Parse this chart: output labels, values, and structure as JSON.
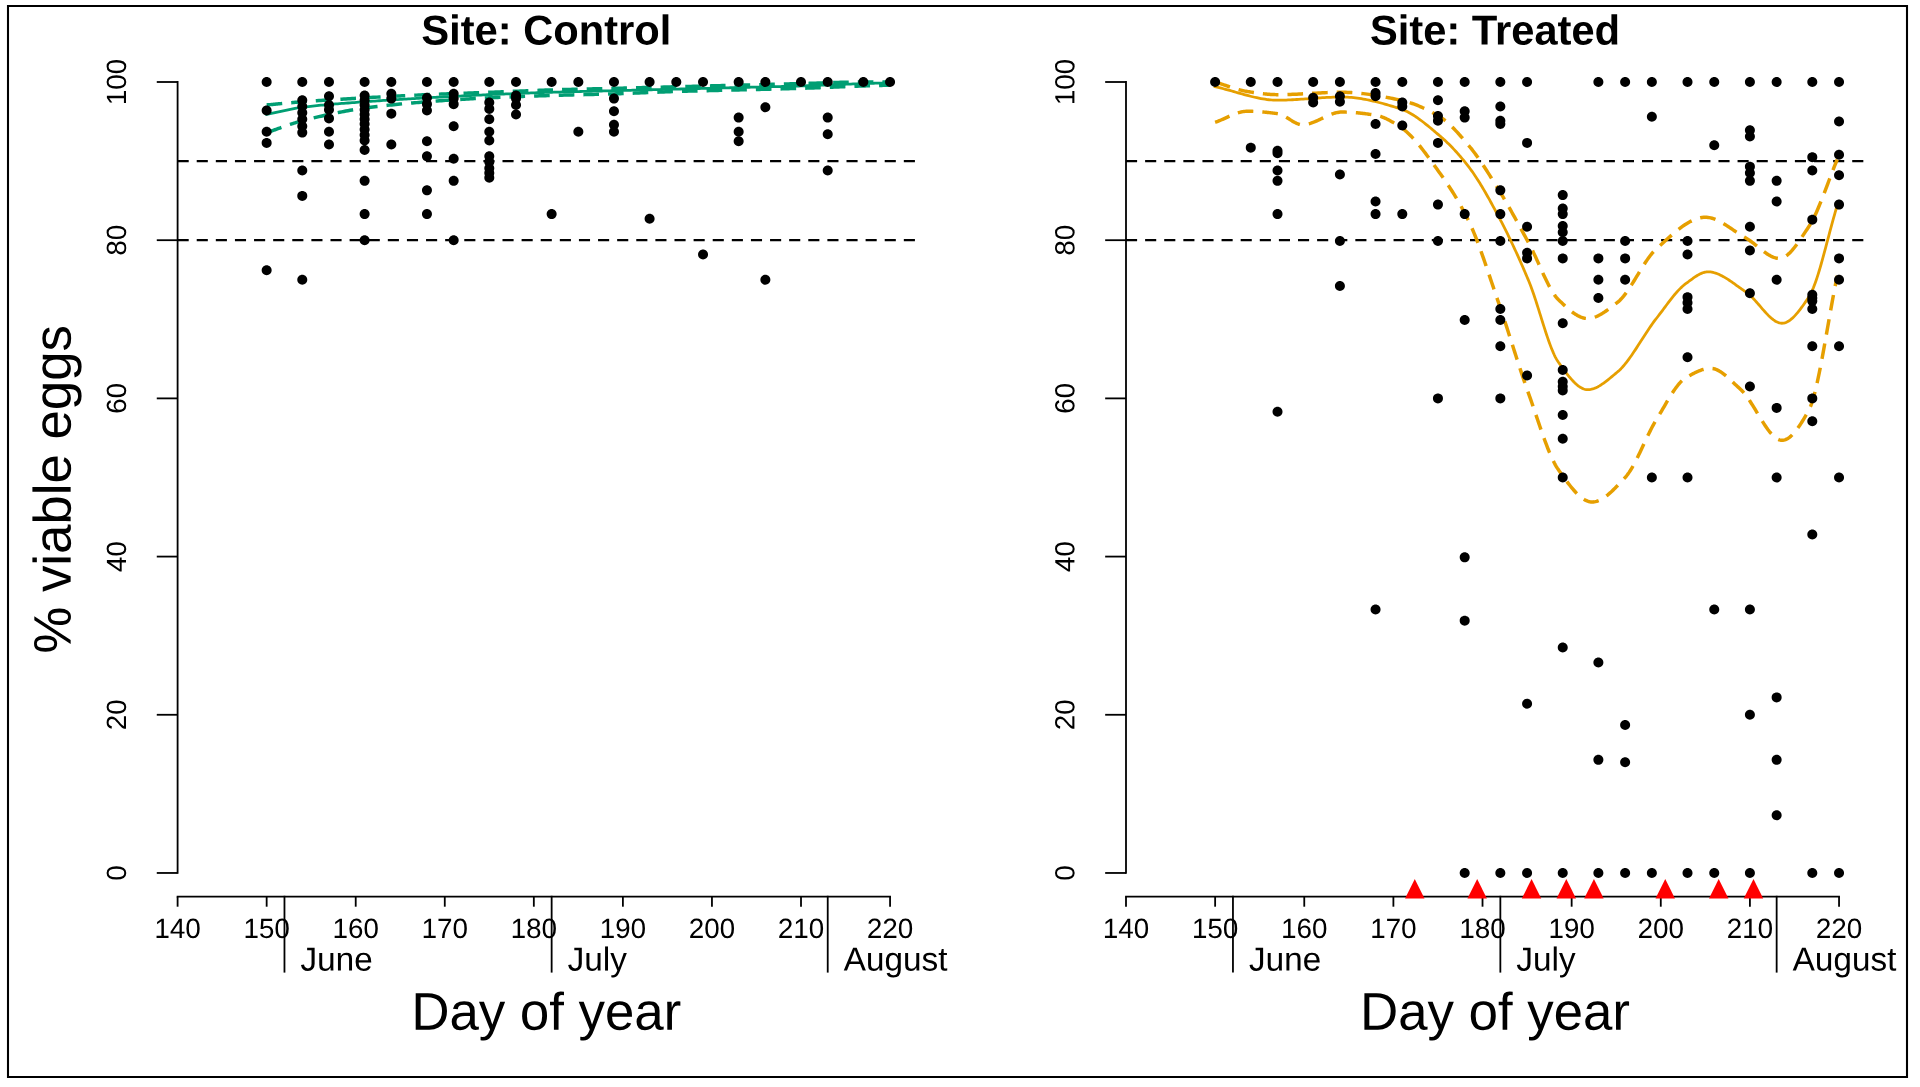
{
  "chart_data": [
    {
      "type": "scatter",
      "title": "Site: Control",
      "xlabel": "Day of year",
      "ylabel": "% viable eggs",
      "xlim": [
        140,
        222.8
      ],
      "ylim": [
        -3,
        100
      ],
      "xticks": [
        140,
        150,
        160,
        170,
        180,
        190,
        200,
        210,
        220
      ],
      "yticks": [
        0,
        20,
        40,
        60,
        80,
        100
      ],
      "ref_lines": [
        {
          "axis": "y",
          "value": 90,
          "color": "#000000",
          "line_style": "dashed"
        },
        {
          "axis": "y",
          "value": 80,
          "color": "#000000",
          "line_style": "dashed"
        },
        {
          "axis": "x",
          "value": 152,
          "label": "June",
          "color": "#000000",
          "line_style": "solid"
        },
        {
          "axis": "x",
          "value": 182,
          "label": "July",
          "color": "#000000",
          "line_style": "solid"
        },
        {
          "axis": "x",
          "value": 213,
          "label": "August",
          "color": "#000000",
          "line_style": "solid"
        }
      ],
      "series": [
        {
          "color": "#000000",
          "marker": "circle",
          "x": [
            150,
            150,
            150,
            150,
            150,
            154,
            154,
            154,
            154,
            154,
            154,
            154,
            154,
            154,
            154,
            157,
            157,
            157,
            157,
            157,
            157,
            157,
            161,
            161,
            161,
            161,
            161,
            161,
            161,
            161,
            161,
            161,
            161,
            161,
            161,
            161,
            161,
            164,
            164,
            164,
            164,
            164,
            168,
            168,
            168,
            168,
            168,
            168,
            168,
            168,
            171,
            171,
            171,
            171,
            171,
            171,
            171,
            171,
            175,
            175,
            175,
            175,
            175,
            175,
            175,
            175,
            175,
            175,
            175,
            178,
            178,
            178,
            178,
            178,
            182,
            182,
            185,
            185,
            189,
            189,
            189,
            189,
            189,
            193,
            193,
            196,
            199,
            199,
            203,
            203,
            203,
            203,
            206,
            206,
            206,
            210,
            213,
            213,
            213,
            213,
            217,
            220
          ],
          "values": [
            100,
            96.4,
            93.7,
            92.3,
            76.2,
            100,
            97.7,
            96.9,
            96.1,
            95.3,
            94.4,
            93.6,
            88.8,
            85.6,
            75.0,
            100,
            98.2,
            97.1,
            96.5,
            95.4,
            93.7,
            92.1,
            100,
            98.3,
            97.7,
            97.1,
            96.5,
            95.9,
            95.3,
            94.7,
            94.0,
            93.3,
            92.6,
            91.4,
            87.5,
            83.3,
            80.0,
            100,
            98.5,
            97.9,
            96.0,
            92.1,
            100,
            98.0,
            97.2,
            96.4,
            92.5,
            90.6,
            86.3,
            83.3,
            100,
            98.5,
            97.9,
            97.2,
            94.4,
            90.3,
            87.5,
            80.0,
            100,
            97.4,
            96.6,
            95.3,
            93.7,
            92.6,
            90.6,
            89.9,
            89.1,
            88.5,
            87.9,
            100,
            98.3,
            97.9,
            97.1,
            95.9,
            100,
            83.3,
            100,
            93.7,
            100,
            97.9,
            96.3,
            94.6,
            93.7,
            100,
            82.7,
            100,
            100,
            78.2,
            100,
            95.5,
            93.7,
            92.5,
            100,
            96.8,
            75.0,
            100,
            100,
            95.5,
            93.4,
            88.8,
            100,
            100
          ]
        },
        {
          "type": "line",
          "color": "#009e73",
          "line_style": "solid",
          "x": [
            150,
            154,
            161,
            168,
            175,
            182,
            189,
            196,
            203,
            210,
            217,
            220
          ],
          "values": [
            95.9,
            96.8,
            97.5,
            98.0,
            98.4,
            98.7,
            98.9,
            99.1,
            99.3,
            99.5,
            99.8,
            99.9
          ]
        },
        {
          "type": "line",
          "color": "#009e73",
          "line_style": "dashed",
          "x": [
            150,
            154,
            161,
            168,
            175,
            182,
            189,
            196,
            203,
            210,
            217,
            220
          ],
          "values": [
            97.1,
            97.5,
            98.0,
            98.4,
            98.7,
            99.0,
            99.2,
            99.4,
            99.6,
            99.8,
            100.0,
            100.0
          ]
        },
        {
          "type": "line",
          "color": "#009e73",
          "line_style": "dashed",
          "x": [
            150,
            154,
            161,
            168,
            175,
            182,
            189,
            196,
            203,
            210,
            217,
            220
          ],
          "values": [
            93.6,
            95.1,
            96.7,
            97.5,
            98.0,
            98.3,
            98.5,
            98.8,
            99.0,
            99.2,
            99.5,
            99.6
          ]
        }
      ]
    },
    {
      "type": "scatter",
      "title": "Site: Treated",
      "xlabel": "Day of year",
      "xlim": [
        140,
        222.8
      ],
      "ylim": [
        -3,
        100
      ],
      "xticks": [
        140,
        150,
        160,
        170,
        180,
        190,
        200,
        210,
        220
      ],
      "yticks": [
        0,
        20,
        40,
        60,
        80,
        100
      ],
      "ref_lines": [
        {
          "axis": "y",
          "value": 90,
          "color": "#000000",
          "line_style": "dashed"
        },
        {
          "axis": "y",
          "value": 80,
          "color": "#000000",
          "line_style": "dashed"
        },
        {
          "axis": "x",
          "value": 152,
          "label": "June",
          "color": "#000000",
          "line_style": "solid"
        },
        {
          "axis": "x",
          "value": 182,
          "label": "July",
          "color": "#000000",
          "line_style": "solid"
        },
        {
          "axis": "x",
          "value": 213,
          "label": "August",
          "color": "#000000",
          "line_style": "solid"
        }
      ],
      "series": [
        {
          "color": "#000000",
          "marker": "circle",
          "x": [
            150,
            154,
            154,
            157,
            157,
            157,
            157,
            157,
            157,
            157,
            161,
            161,
            161,
            164,
            164,
            164,
            164,
            164,
            164,
            168,
            168,
            168,
            168,
            168,
            168,
            168,
            168,
            171,
            171,
            171,
            171,
            171,
            175,
            175,
            175,
            175,
            175,
            175,
            175,
            175,
            178,
            178,
            178,
            178,
            178,
            178,
            178,
            178,
            182,
            182,
            182,
            182,
            182,
            182,
            182,
            182,
            182,
            182,
            182,
            182,
            185,
            185,
            185,
            185,
            185,
            185,
            185,
            185,
            189,
            189,
            189,
            189,
            189,
            189,
            189,
            189,
            189,
            189,
            189,
            189,
            189,
            189,
            189,
            189,
            189,
            193,
            193,
            193,
            193,
            193,
            193,
            193,
            196,
            196,
            196,
            196,
            196,
            196,
            196,
            199,
            199,
            199,
            199,
            203,
            203,
            203,
            203,
            203,
            203,
            203,
            203,
            203,
            206,
            206,
            206,
            206,
            210,
            210,
            210,
            210,
            210,
            210,
            210,
            210,
            210,
            210,
            210,
            210,
            210,
            213,
            213,
            213,
            213,
            213,
            213,
            213,
            213,
            213,
            217,
            217,
            217,
            217,
            217,
            217,
            217,
            217,
            217,
            217,
            217,
            217,
            217,
            220,
            220,
            220,
            220,
            220,
            220,
            220,
            220,
            220,
            220
          ],
          "values": [
            100,
            100,
            91.7,
            100,
            91.3,
            91.0,
            88.8,
            87.5,
            83.3,
            58.3,
            100,
            98.0,
            97.4,
            100,
            98.2,
            97.5,
            88.3,
            79.9,
            74.2,
            100,
            98.6,
            98.2,
            94.7,
            90.9,
            84.9,
            83.3,
            33.3,
            100,
            97.4,
            96.9,
            94.5,
            83.3,
            100,
            97.7,
            95.7,
            95.1,
            92.3,
            84.5,
            79.9,
            60.0,
            100,
            96.3,
            95.5,
            83.3,
            69.9,
            39.9,
            31.9,
            0,
            100,
            96.9,
            95.1,
            94.7,
            86.3,
            83.3,
            79.9,
            71.3,
            69.9,
            66.6,
            60.0,
            0,
            100,
            92.3,
            81.7,
            78.4,
            77.7,
            62.9,
            21.4,
            0,
            85.7,
            84.0,
            83.3,
            81.8,
            81.0,
            79.9,
            77.7,
            69.5,
            63.6,
            62.1,
            61.5,
            61.0,
            57.9,
            54.9,
            50.0,
            28.5,
            0,
            100,
            77.7,
            75.0,
            72.7,
            26.6,
            14.3,
            0,
            100,
            79.9,
            77.7,
            75.0,
            18.7,
            14.0,
            0,
            100,
            95.6,
            50.0,
            0,
            100,
            79.9,
            78.2,
            72.8,
            72.1,
            71.3,
            65.2,
            50.0,
            0,
            100,
            92.0,
            33.3,
            0,
            100,
            93.9,
            93.1,
            89.3,
            88.5,
            87.5,
            81.7,
            78.7,
            73.3,
            61.5,
            33.3,
            20.0,
            0,
            100,
            87.5,
            84.9,
            75.0,
            58.8,
            50.0,
            22.2,
            14.3,
            7.3,
            100,
            90.5,
            88.8,
            82.6,
            73.1,
            72.7,
            72.3,
            71.3,
            66.6,
            60.0,
            57.1,
            42.8,
            0,
            100,
            95.0,
            90.8,
            88.2,
            84.5,
            77.7,
            75.0,
            66.6,
            50.0,
            0
          ]
        },
        {
          "type": "line",
          "color": "#e69f00",
          "line_style": "solid",
          "x": [
            150,
            157,
            164.2,
            170.8,
            175.2,
            178.5,
            181.8,
            185.2,
            188.5,
            191.8,
            195.1,
            199.5,
            202.8,
            205.3,
            209.5,
            213.6,
            216.6,
            219.8
          ],
          "values": [
            99.4,
            97.7,
            98.1,
            96.6,
            93.2,
            89.2,
            83.0,
            74.8,
            64.6,
            61.1,
            63.3,
            70.1,
            74.5,
            76.0,
            73.5,
            69.5,
            72.8,
            84.4
          ]
        },
        {
          "type": "line",
          "color": "#e69f00",
          "line_style": "dashed",
          "x": [
            150,
            153.6,
            157,
            164.2,
            170.8,
            175.2,
            178.5,
            181.8,
            185.2,
            188.5,
            191.8,
            195.1,
            199.5,
            205,
            209.5,
            213.3,
            216.6,
            219.8
          ],
          "values": [
            100.0,
            98.8,
            98.4,
            98.7,
            97.7,
            95.6,
            91.9,
            86.4,
            79.6,
            72.5,
            70.1,
            72.1,
            78.9,
            82.9,
            80.3,
            77.7,
            81.7,
            90.2
          ]
        },
        {
          "type": "line",
          "color": "#e69f00",
          "line_style": "dashed",
          "x": [
            150,
            153.6,
            157,
            159.8,
            164.2,
            168,
            170.8,
            175.2,
            178.5,
            181.8,
            185.2,
            188.5,
            192.3,
            196,
            199.5,
            202.8,
            205.6,
            208.9,
            213.6,
            216.6,
            219.8
          ],
          "values": [
            94.9,
            96.3,
            96.0,
            94.6,
            96.2,
            95.8,
            94.3,
            88.5,
            82.3,
            72.1,
            60.5,
            51.0,
            46.9,
            50.0,
            57.3,
            62.6,
            63.8,
            61.2,
            54.7,
            58.5,
            75.5
          ]
        },
        {
          "color": "#ff0000",
          "marker": "triangle",
          "x": [
            172.4,
            179.4,
            185.5,
            189.4,
            192.5,
            200.5,
            206.5,
            210.4
          ],
          "values": [
            -2,
            -2,
            -2,
            -2,
            -2,
            -2,
            -2,
            -2
          ]
        }
      ]
    }
  ]
}
